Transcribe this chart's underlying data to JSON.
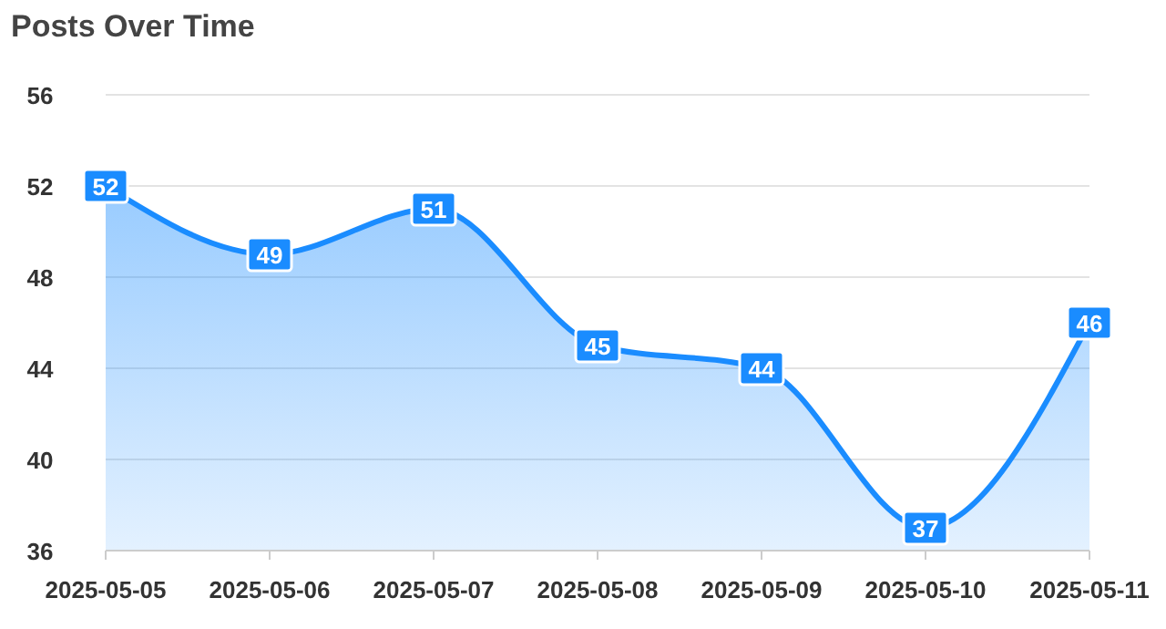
{
  "chart_data": {
    "type": "area",
    "title": "Posts Over Time",
    "categories": [
      "2025-05-05",
      "2025-05-06",
      "2025-05-07",
      "2025-05-08",
      "2025-05-09",
      "2025-05-10",
      "2025-05-11"
    ],
    "series": [
      {
        "color": "#1a8cff",
        "values": [
          52,
          49,
          51,
          45,
          44,
          37,
          46
        ]
      }
    ],
    "ylim": [
      36,
      56
    ],
    "yticks": [
      36,
      40,
      44,
      48,
      52,
      56
    ],
    "grid": "y",
    "data_labels": true
  }
}
